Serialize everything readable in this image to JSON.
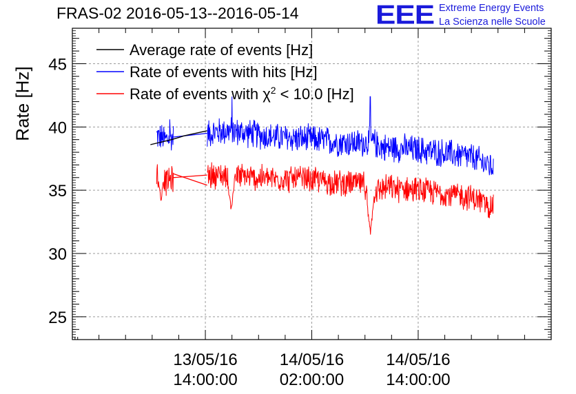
{
  "header": {
    "title": "FRAS-02 2016-05-13--2016-05-14",
    "logo_text": "EEE",
    "logo_line1": "Extreme Energy Events",
    "logo_line2": "La Scienza nelle Scuole",
    "logo_color": "#1a1adb"
  },
  "chart_data": {
    "type": "line",
    "title": "FRAS-02 2016-05-13--2016-05-14",
    "ylabel": "Rate [Hz]",
    "xlabel": "",
    "ylim": [
      23.2,
      47.8
    ],
    "xlim_hours": [
      -15.0,
      39.0
    ],
    "yticks": [
      25,
      30,
      35,
      40,
      45
    ],
    "xtick_hours": [
      0,
      12,
      24
    ],
    "xtick_labels": [
      [
        "13/05/16",
        "14:00:00"
      ],
      [
        "14/05/16",
        "02:00:00"
      ],
      [
        "14/05/16",
        "14:00:00"
      ]
    ],
    "x_axis_unit": "hours since 13/05/16 14:00:00",
    "grid": true,
    "legend_position": "top-left",
    "series": [
      {
        "name": "Average rate of events [Hz]",
        "color": "#000000",
        "segments": [
          {
            "x": [
              -6.2,
              -3.8,
              -2.4,
              0.2
            ],
            "y": [
              38.6,
              39.0,
              39.3,
              39.7
            ]
          }
        ]
      },
      {
        "name": "Rate of events with hits [Hz]",
        "color": "#0000ff",
        "start_hour": -5.5,
        "end_hour": 32.5,
        "gap": [
          -3.6,
          0.2
        ],
        "points": [
          [
            -5.5,
            39.3
          ],
          [
            -4.5,
            39.0
          ],
          [
            -3.6,
            39.2
          ],
          [
            0.2,
            39.5
          ],
          [
            2.5,
            39.7
          ],
          [
            5,
            39.5
          ],
          [
            7.5,
            39.2
          ],
          [
            10,
            39.1
          ],
          [
            12.5,
            39.0
          ],
          [
            15,
            38.8
          ],
          [
            17.5,
            38.7
          ],
          [
            18.6,
            38.9
          ],
          [
            20,
            38.4
          ],
          [
            22.5,
            38.3
          ],
          [
            25,
            38.1
          ],
          [
            27.5,
            37.9
          ],
          [
            30,
            37.6
          ],
          [
            32.5,
            36.8
          ]
        ],
        "noise_amplitude": 1.3,
        "spikes": [
          [
            3.0,
            42.4
          ],
          [
            18.6,
            42.4
          ],
          [
            -4.0,
            40.6
          ]
        ]
      },
      {
        "name": "Rate of events with χ² < 10.0 [Hz]",
        "color": "#ff0000",
        "start_hour": -5.5,
        "end_hour": 32.5,
        "gap": [
          -3.6,
          0.2
        ],
        "points": [
          [
            -5.5,
            36.0
          ],
          [
            -4.5,
            35.6
          ],
          [
            -3.6,
            36.0
          ],
          [
            0.2,
            36.2
          ],
          [
            2.5,
            36.2
          ],
          [
            5,
            36.0
          ],
          [
            7.5,
            35.9
          ],
          [
            10,
            35.9
          ],
          [
            12.5,
            35.8
          ],
          [
            15,
            35.6
          ],
          [
            17.5,
            35.5
          ],
          [
            18.3,
            35.3
          ],
          [
            19.0,
            34.8
          ],
          [
            20,
            35.2
          ],
          [
            22.5,
            35.1
          ],
          [
            25,
            34.9
          ],
          [
            27.5,
            34.7
          ],
          [
            30,
            34.4
          ],
          [
            32.5,
            33.7
          ]
        ],
        "noise_amplitude": 1.2,
        "dips": [
          [
            18.6,
            31.6
          ],
          [
            2.9,
            33.4
          ],
          [
            -5.0,
            34.3
          ]
        ],
        "bridge": [
          [
            -3.6,
            36.3
          ],
          [
            0.2,
            35.4
          ]
        ]
      }
    ]
  }
}
